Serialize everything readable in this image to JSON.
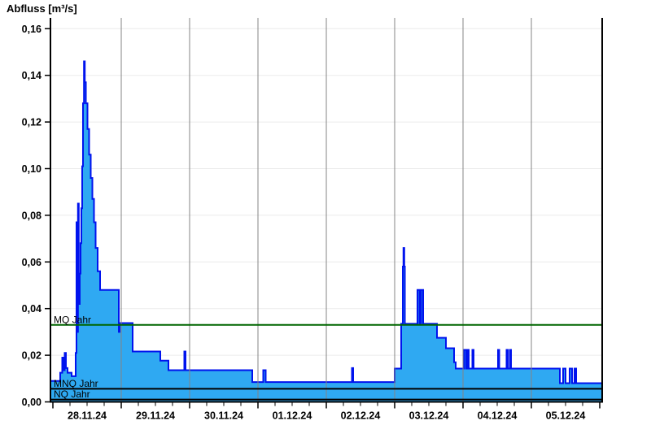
{
  "chart_data": {
    "type": "area",
    "title": "Abfluss [m³/s]",
    "ylabel": "Abfluss [m³/s]",
    "unit": "m³/s",
    "ylim": [
      0,
      0.16
    ],
    "ytick_step": 0.02,
    "ytick_labels": [
      "0,00",
      "0,02",
      "0,04",
      "0,06",
      "0,08",
      "0,10",
      "0,12",
      "0,14",
      "0,16"
    ],
    "xtick_labels": [
      "28.11.24",
      "29.11.24",
      "30.11.24",
      "01.12.24",
      "02.12.24",
      "03.12.24",
      "04.12.24",
      "05.12.24"
    ],
    "x_range_days": [
      -0.036,
      8.036
    ],
    "x_epoch": "28.11.24 00:00",
    "minor_ticks_per_day": 4,
    "grid": "on",
    "legend_position": "none",
    "colors": {
      "fill": "#2FA9F2",
      "stroke": "#0013EE",
      "grid_h": "#EBEBEB",
      "grid_v": "#848484",
      "axis": "#000000",
      "mq_line": "#006600",
      "low_lines": "#000000"
    },
    "reference_lines": [
      {
        "name": "mq-jahr",
        "label": "MQ Jahr",
        "value": 0.033,
        "color": "#006600"
      },
      {
        "name": "mnq-jahr",
        "label": "MNQ Jahr",
        "value": 0.0056,
        "color": "#000000"
      },
      {
        "name": "nq-jahr",
        "label": "NQ Jahr",
        "value": 0.001,
        "color": "#000000"
      }
    ],
    "series": [
      {
        "name": "Abfluss",
        "interpolation": "step-after",
        "t_end_days": 8.036,
        "step_points": [
          [
            -0.036,
            0.009
          ],
          [
            0.107,
            0.0125
          ],
          [
            0.137,
            0.019
          ],
          [
            0.155,
            0.0136
          ],
          [
            0.173,
            0.021
          ],
          [
            0.19,
            0.0145
          ],
          [
            0.214,
            0.0125
          ],
          [
            0.274,
            0.011
          ],
          [
            0.333,
            0.021
          ],
          [
            0.345,
            0.077
          ],
          [
            0.357,
            0.03
          ],
          [
            0.367,
            0.085
          ],
          [
            0.379,
            0.042
          ],
          [
            0.393,
            0.055
          ],
          [
            0.405,
            0.068
          ],
          [
            0.417,
            0.083
          ],
          [
            0.429,
            0.101
          ],
          [
            0.44,
            0.128
          ],
          [
            0.455,
            0.146
          ],
          [
            0.467,
            0.137
          ],
          [
            0.482,
            0.128
          ],
          [
            0.506,
            0.117
          ],
          [
            0.53,
            0.106
          ],
          [
            0.554,
            0.096
          ],
          [
            0.577,
            0.087
          ],
          [
            0.601,
            0.077
          ],
          [
            0.625,
            0.066
          ],
          [
            0.655,
            0.056
          ],
          [
            0.69,
            0.048
          ],
          [
            0.964,
            0.03
          ],
          [
            0.976,
            0.0338
          ],
          [
            1.167,
            0.0216
          ],
          [
            1.571,
            0.0177
          ],
          [
            1.69,
            0.0136
          ],
          [
            1.923,
            0.0216
          ],
          [
            1.94,
            0.0136
          ],
          [
            2.917,
            0.0085
          ],
          [
            3.077,
            0.0136
          ],
          [
            3.113,
            0.0085
          ],
          [
            4.375,
            0.0145
          ],
          [
            4.393,
            0.0085
          ],
          [
            5.0,
            0.0143
          ],
          [
            5.095,
            0.0335
          ],
          [
            5.119,
            0.058
          ],
          [
            5.129,
            0.066
          ],
          [
            5.14,
            0.058
          ],
          [
            5.149,
            0.0335
          ],
          [
            5.333,
            0.048
          ],
          [
            5.363,
            0.0335
          ],
          [
            5.387,
            0.048
          ],
          [
            5.417,
            0.0335
          ],
          [
            5.619,
            0.0275
          ],
          [
            5.75,
            0.023
          ],
          [
            5.869,
            0.017
          ],
          [
            5.893,
            0.0143
          ],
          [
            6.012,
            0.0223
          ],
          [
            6.042,
            0.0143
          ],
          [
            6.066,
            0.0223
          ],
          [
            6.083,
            0.0143
          ],
          [
            6.137,
            0.0223
          ],
          [
            6.155,
            0.0143
          ],
          [
            6.512,
            0.0223
          ],
          [
            6.53,
            0.0143
          ],
          [
            6.637,
            0.0223
          ],
          [
            6.655,
            0.0143
          ],
          [
            6.684,
            0.0223
          ],
          [
            6.702,
            0.0143
          ],
          [
            7.417,
            0.008
          ],
          [
            7.464,
            0.0143
          ],
          [
            7.5,
            0.008
          ],
          [
            7.56,
            0.0143
          ],
          [
            7.595,
            0.008
          ],
          [
            7.631,
            0.0143
          ],
          [
            7.655,
            0.008
          ]
        ]
      }
    ]
  }
}
